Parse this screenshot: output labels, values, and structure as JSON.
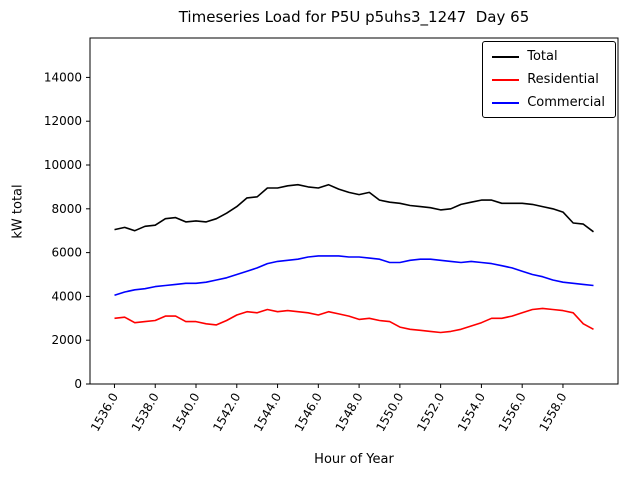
{
  "chart_data": {
    "type": "line",
    "title": "Timeseries Load for P5U p5uhs3_1247  Day 65",
    "xlabel": "Hour of Year",
    "ylabel": "kW total",
    "xlim": [
      1534.8,
      1560.7
    ],
    "ylim": [
      0,
      15800
    ],
    "grid": false,
    "legend_position": "upper right",
    "x_ticks": [
      1536,
      1538,
      1540,
      1542,
      1544,
      1546,
      1548,
      1550,
      1552,
      1554,
      1556,
      1558
    ],
    "x_tick_labels": [
      "1536.0",
      "1538.0",
      "1540.0",
      "1542.0",
      "1544.0",
      "1546.0",
      "1548.0",
      "1550.0",
      "1552.0",
      "1554.0",
      "1556.0",
      "1558.0"
    ],
    "y_ticks": [
      0,
      2000,
      4000,
      6000,
      8000,
      10000,
      12000,
      14000
    ],
    "y_tick_labels": [
      "0",
      "2000",
      "4000",
      "6000",
      "8000",
      "10000",
      "12000",
      "14000"
    ],
    "x": [
      1536.0,
      1536.5,
      1537.0,
      1537.5,
      1538.0,
      1538.5,
      1539.0,
      1539.5,
      1540.0,
      1540.5,
      1541.0,
      1541.5,
      1542.0,
      1542.5,
      1543.0,
      1543.5,
      1544.0,
      1544.5,
      1545.0,
      1545.5,
      1546.0,
      1546.5,
      1547.0,
      1547.5,
      1548.0,
      1548.5,
      1549.0,
      1549.5,
      1550.0,
      1550.5,
      1551.0,
      1551.5,
      1552.0,
      1552.5,
      1553.0,
      1553.5,
      1554.0,
      1554.5,
      1555.0,
      1555.5,
      1556.0,
      1556.5,
      1557.0,
      1557.5,
      1558.0,
      1558.5,
      1559.0,
      1559.5
    ],
    "series": [
      {
        "name": "Total",
        "color": "#000000",
        "values": [
          7050,
          7150,
          7000,
          7200,
          7250,
          7550,
          7600,
          7400,
          7450,
          7400,
          7550,
          7800,
          8100,
          8500,
          8550,
          8950,
          8950,
          9050,
          9100,
          9000,
          8950,
          9100,
          8900,
          8750,
          8650,
          8750,
          8400,
          8300,
          8250,
          8150,
          8100,
          8050,
          7950,
          8000,
          8200,
          8300,
          8400,
          8400,
          8250,
          8250,
          8250,
          8200,
          8100,
          8000,
          7850,
          7350,
          7300,
          6950
        ]
      },
      {
        "name": "Residential",
        "color": "#ff0000",
        "values": [
          3000,
          3050,
          2800,
          2850,
          2900,
          3100,
          3100,
          2850,
          2850,
          2750,
          2700,
          2900,
          3150,
          3300,
          3250,
          3400,
          3300,
          3350,
          3300,
          3250,
          3150,
          3300,
          3200,
          3100,
          2950,
          3000,
          2900,
          2850,
          2600,
          2500,
          2450,
          2400,
          2350,
          2400,
          2500,
          2650,
          2800,
          3000,
          3000,
          3100,
          3250,
          3400,
          3450,
          3400,
          3350,
          3250,
          2750,
          2500
        ]
      },
      {
        "name": "Commercial",
        "color": "#0000ff",
        "values": [
          4050,
          4200,
          4300,
          4350,
          4450,
          4500,
          4550,
          4600,
          4600,
          4650,
          4750,
          4850,
          5000,
          5150,
          5300,
          5500,
          5600,
          5650,
          5700,
          5800,
          5850,
          5850,
          5850,
          5800,
          5800,
          5750,
          5700,
          5550,
          5550,
          5650,
          5700,
          5700,
          5650,
          5600,
          5550,
          5600,
          5550,
          5500,
          5400,
          5300,
          5150,
          5000,
          4900,
          4750,
          4650,
          4600,
          4550,
          4500
        ]
      }
    ]
  }
}
